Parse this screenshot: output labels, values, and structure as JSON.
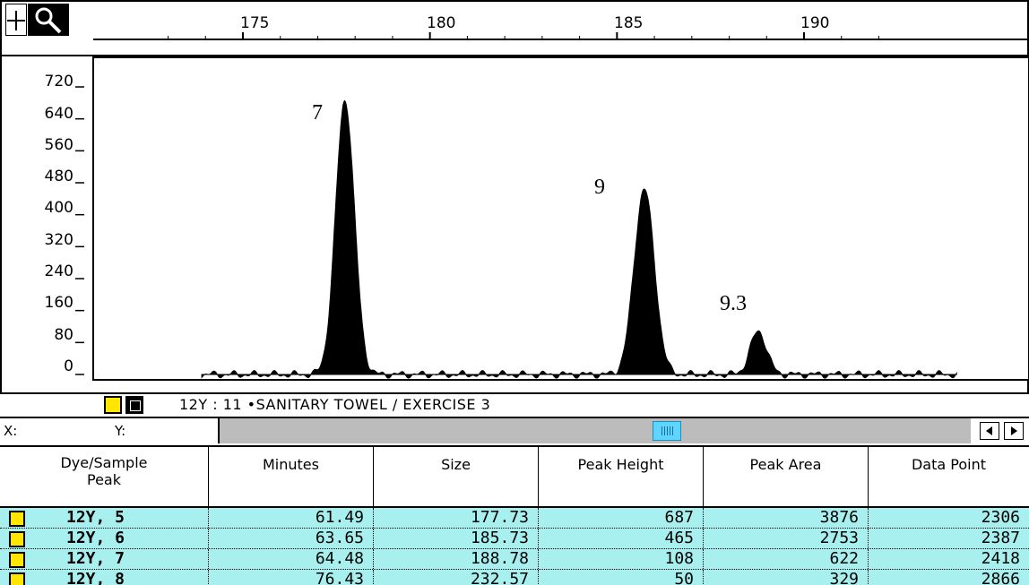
{
  "toolbar": {
    "crosshair_icon": "crosshair-icon",
    "zoom_icon": "magnifier-icon"
  },
  "ruler": {
    "ticks": [
      "175",
      "180",
      "185",
      "190"
    ]
  },
  "chart_data": {
    "type": "area",
    "x_axis_ticks": [
      175,
      180,
      185,
      190
    ],
    "y_axis_ticks": [
      "720",
      "640",
      "560",
      "480",
      "400",
      "320",
      "240",
      "160",
      "80",
      "0"
    ],
    "ylim": [
      0,
      760
    ],
    "peaks": [
      {
        "label": "7",
        "size": 177.73,
        "height": 687
      },
      {
        "label": "9",
        "size": 185.73,
        "height": 465
      },
      {
        "label": "9.3",
        "size": 188.78,
        "height": 108
      }
    ],
    "fill_color": "#000000"
  },
  "sample": {
    "label": "12Y : 11 •SANITARY TOWEL / EXERCISE 3",
    "swatch_colors": [
      "#ffe600",
      "#000000"
    ]
  },
  "coords": {
    "x_label": "X:",
    "y_label": "Y:"
  },
  "table": {
    "headers": [
      "Dye/Sample\nPeak",
      "Minutes",
      "Size",
      "Peak Height",
      "Peak Area",
      "Data Point"
    ],
    "rows": [
      {
        "peak": "12Y, 5",
        "minutes": "61.49",
        "size": "177.73",
        "height": "687",
        "area": "3876",
        "data_point": "2306"
      },
      {
        "peak": "12Y, 6",
        "minutes": "63.65",
        "size": "185.73",
        "height": "465",
        "area": "2753",
        "data_point": "2387"
      },
      {
        "peak": "12Y, 7",
        "minutes": "64.48",
        "size": "188.78",
        "height": "108",
        "area": "622",
        "data_point": "2418"
      },
      {
        "peak": "12Y, 8",
        "minutes": "76.43",
        "size": "232.57",
        "height": "50",
        "area": "329",
        "data_point": "2866"
      }
    ],
    "row_color": "#a8f0f0",
    "swatch_color": "#ffe600"
  }
}
